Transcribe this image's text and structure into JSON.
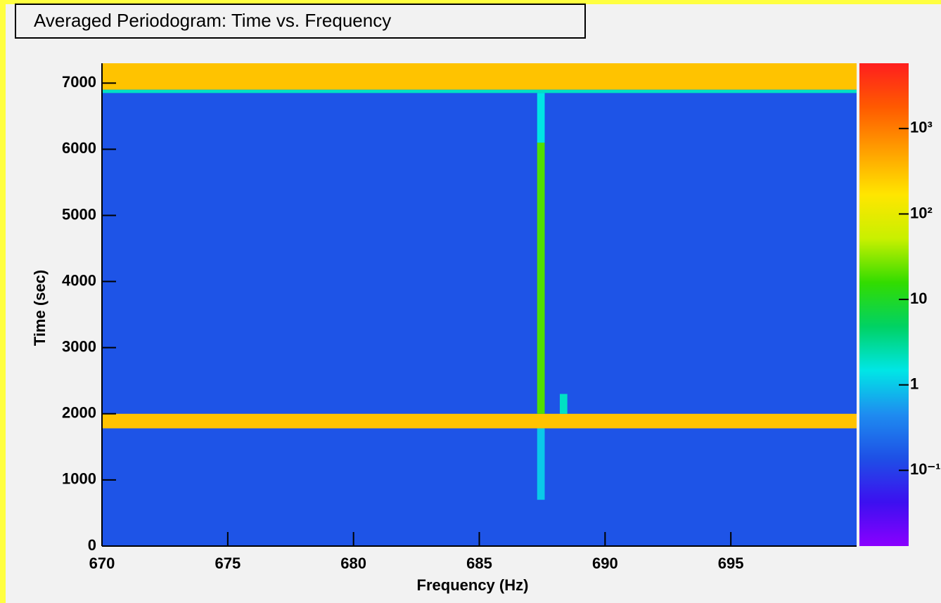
{
  "chart_data": {
    "type": "heatmap",
    "title": "Averaged Periodogram: Time vs. Frequency",
    "x_label": "Frequency (Hz)",
    "y_label": "Time (sec)",
    "xlim": [
      670,
      700
    ],
    "xticks": [
      670,
      675,
      680,
      685,
      690,
      695
    ],
    "ylim": [
      0,
      7300
    ],
    "yticks": [
      0,
      1000,
      2000,
      3000,
      4000,
      5000,
      6000,
      7000
    ],
    "zlim": [
      0.013,
      5800
    ],
    "zlog": true,
    "zticks": [
      {
        "value": 0.1,
        "label": "10⁻¹"
      },
      1,
      10,
      {
        "value": 100,
        "label": "10²"
      },
      {
        "value": 1000,
        "label": "10³"
      }
    ],
    "colormap": [
      "#8a00ff",
      "#3c10f0",
      "#1e50e6",
      "#1e8cf0",
      "#00e6e6",
      "#00d264",
      "#32dc00",
      "#c8f000",
      "#ffe600",
      "#ffa000",
      "#ff5a00",
      "#ff1e1e"
    ],
    "regions": [
      {
        "x": [
          670,
          700
        ],
        "y": [
          0,
          7300
        ],
        "z": 0.15
      },
      {
        "x": [
          670,
          700
        ],
        "y": [
          6900,
          7300
        ],
        "z": 300
      },
      {
        "x": [
          670,
          700
        ],
        "y": [
          6850,
          6900
        ],
        "z": 2
      },
      {
        "x": [
          670,
          700
        ],
        "y": [
          1780,
          2000
        ],
        "z": 300
      },
      {
        "x": [
          687.3,
          687.6
        ],
        "y": [
          2000,
          6100
        ],
        "z": 20
      },
      {
        "x": [
          687.3,
          687.6
        ],
        "y": [
          6100,
          6850
        ],
        "z": 1.5
      },
      {
        "x": [
          687.3,
          687.6
        ],
        "y": [
          700,
          1780
        ],
        "z": 1
      },
      {
        "x": [
          688.2,
          688.5
        ],
        "y": [
          2000,
          2300
        ],
        "z": 2
      }
    ]
  }
}
